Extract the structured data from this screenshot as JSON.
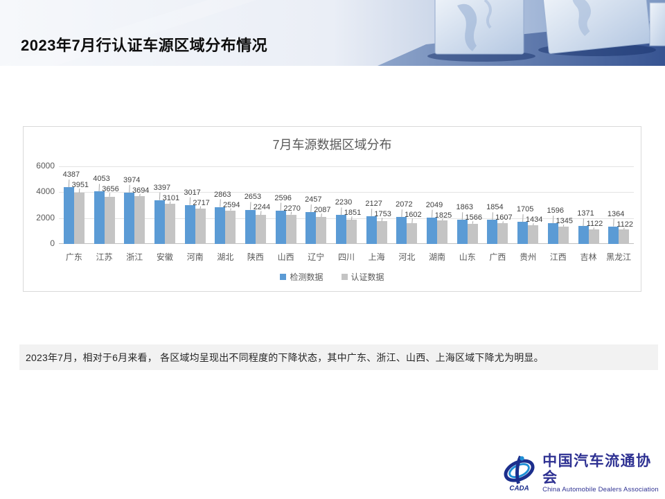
{
  "header": {
    "title": "2023年7月行认证车源区域分布情况"
  },
  "chart_data": {
    "type": "bar",
    "title": "7月车源数据区域分布",
    "categories": [
      "广东",
      "江苏",
      "浙江",
      "安徽",
      "河南",
      "湖北",
      "陕西",
      "山西",
      "辽宁",
      "四川",
      "上海",
      "河北",
      "湖南",
      "山东",
      "广西",
      "贵州",
      "江西",
      "吉林",
      "黑龙江"
    ],
    "series": [
      {
        "name": "检测数据",
        "color": "#5b9bd5",
        "values": [
          4387,
          4053,
          3974,
          3397,
          3017,
          2863,
          2653,
          2596,
          2457,
          2230,
          2127,
          2072,
          2049,
          1863,
          1854,
          1705,
          1596,
          1371,
          1364
        ]
      },
      {
        "name": "认证数据",
        "color": "#c4c4c4",
        "values": [
          3951,
          3656,
          3694,
          3101,
          2717,
          2594,
          2244,
          2270,
          2087,
          1851,
          1753,
          1602,
          1825,
          1566,
          1607,
          1434,
          1345,
          1122,
          1122
        ]
      }
    ],
    "xlabel": "",
    "ylabel": "",
    "ylim": [
      0,
      6000
    ],
    "yticks": [
      0,
      2000,
      4000,
      6000
    ],
    "grid": true,
    "legend_position": "bottom",
    "data_labels": true
  },
  "note": {
    "text": "2023年7月，相对于6月来看， 各区域均呈现出不同程度的下降状态，其中广东、浙江、山西、上海区域下降尤为明显。"
  },
  "footer": {
    "logo_mark": "CADA",
    "logo_text_cn": "中国汽车流通协会",
    "logo_text_en": "China Automobile Dealers Association",
    "brand_color": "#2e3192"
  }
}
